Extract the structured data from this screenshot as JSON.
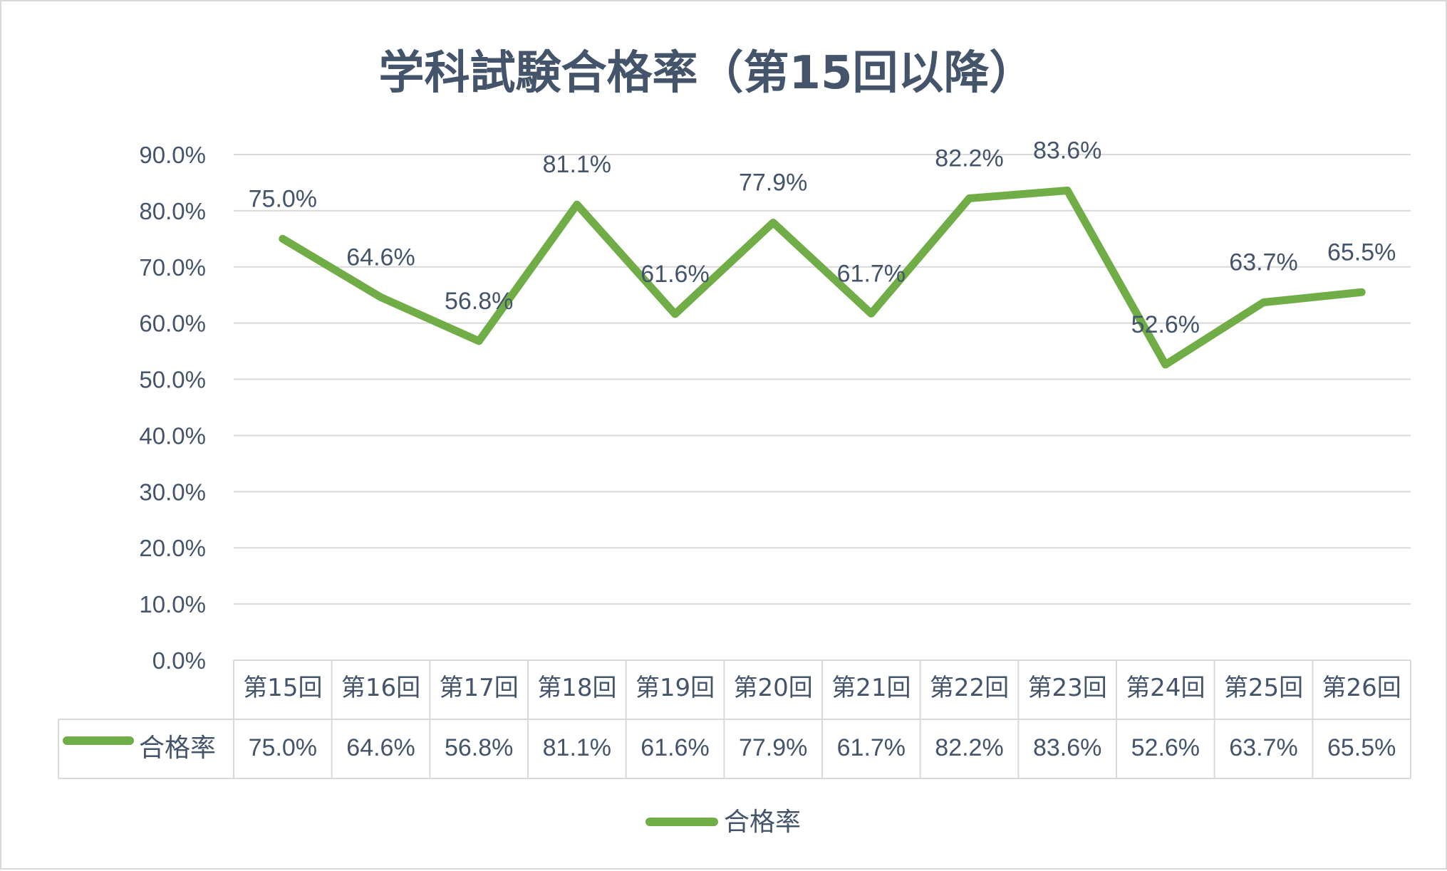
{
  "chart_data": {
    "type": "line",
    "title": "学科試験合格率（第15回以降）",
    "categories": [
      "第15回",
      "第16回",
      "第17回",
      "第18回",
      "第19回",
      "第20回",
      "第21回",
      "第22回",
      "第23回",
      "第24回",
      "第25回",
      "第26回"
    ],
    "series": [
      {
        "name": "合格率",
        "values": [
          75.0,
          64.6,
          56.8,
          81.1,
          61.6,
          77.9,
          61.7,
          82.2,
          83.6,
          52.6,
          63.7,
          65.5
        ],
        "labels": [
          "75.0%",
          "64.6%",
          "56.8%",
          "81.1%",
          "61.6%",
          "77.9%",
          "61.7%",
          "82.2%",
          "83.6%",
          "52.6%",
          "63.7%",
          "65.5%"
        ],
        "color": "#70ad47"
      }
    ],
    "ylim": [
      0,
      90
    ],
    "yticks": [
      "0.0%",
      "10.0%",
      "20.0%",
      "30.0%",
      "40.0%",
      "50.0%",
      "60.0%",
      "70.0%",
      "80.0%",
      "90.0%"
    ],
    "grid": true,
    "data_table": true,
    "legend": "bottom"
  }
}
